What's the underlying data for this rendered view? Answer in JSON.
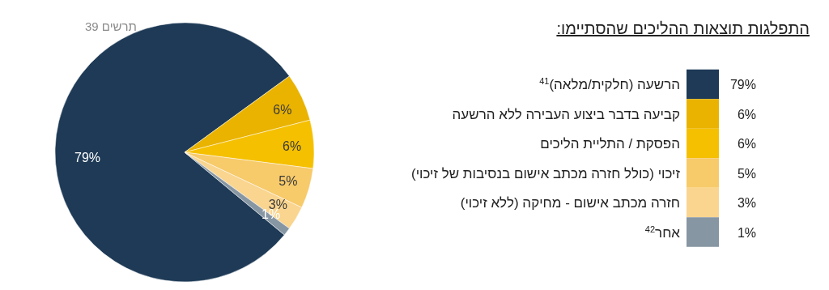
{
  "chart_data": {
    "type": "pie",
    "title": "התפלגות תוצאות ההליכים שהסתיימו:",
    "annotations": [
      "תרשים 39"
    ],
    "categories": [
      "הרשעה (חלקית/מלאה)$^{41}$",
      "קביעה בדבר ביצוע העבירה ללא הרשעה",
      "הפסקת / התליית הליכים",
      "זיכוי (כולל חזרה מכתב אישום בנסיבות של זיכוי)",
      "חזרה מכתב אישום - מחיקה (ללא זיכוי)",
      "אחר$^{42}$"
    ],
    "values": [
      79,
      6,
      6,
      5,
      3,
      1
    ],
    "colors": [
      "#1e3a56",
      "#e9b300",
      "#f5c000",
      "#f7ca6a",
      "#f9d590",
      "#8796a3"
    ],
    "value_labels": [
      "79%",
      "6%",
      "6%",
      "5%",
      "3%",
      "1%"
    ],
    "legend": "right"
  }
}
